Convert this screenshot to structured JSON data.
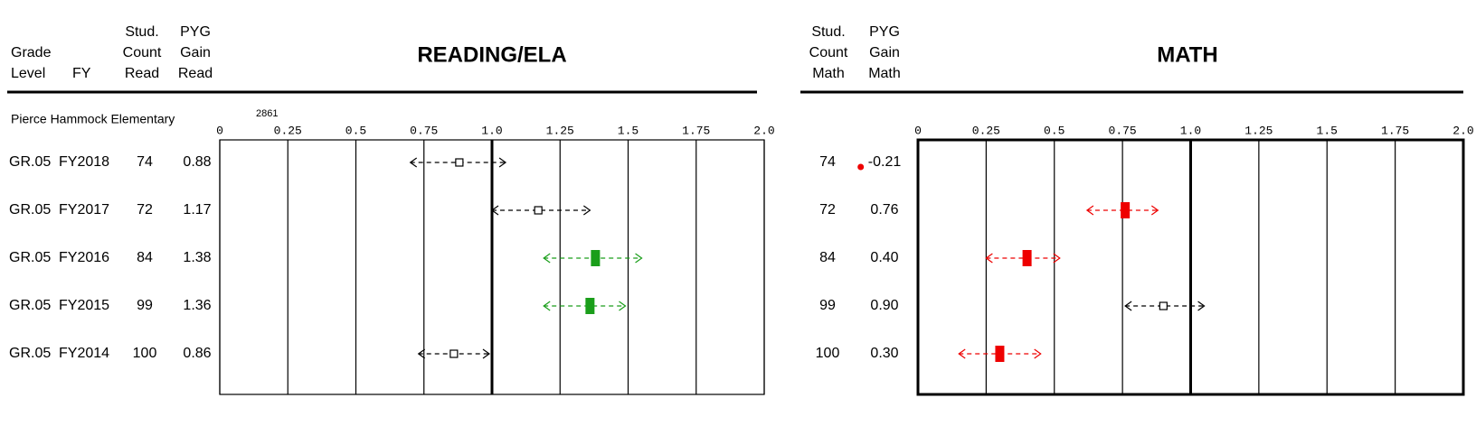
{
  "columns": [
    [
      "Grade",
      "Level"
    ],
    [
      "FY"
    ],
    [
      "Stud.",
      "Count",
      "Read"
    ],
    [
      "PYG",
      "Gain",
      "Read"
    ]
  ],
  "math_columns": [
    [
      "Stud.",
      "Count",
      "Math"
    ],
    [
      "PYG",
      "Gain",
      "Math"
    ]
  ],
  "school": "Pierce Hammock Elementary",
  "annotation": "2861",
  "rows": {
    "grade": [
      "GR.05",
      "GR.05",
      "GR.05",
      "GR.05",
      "GR.05"
    ],
    "fy": [
      "FY2018",
      "FY2017",
      "FY2016",
      "FY2015",
      "FY2014"
    ]
  },
  "chart_data": [
    {
      "type": "interval",
      "title": "READING/ELA",
      "counts": [
        74,
        72,
        84,
        99,
        100
      ],
      "values": [
        0.88,
        1.17,
        1.38,
        1.36,
        0.86
      ],
      "low": [
        0.7,
        1.0,
        1.19,
        1.19,
        0.73
      ],
      "high": [
        1.05,
        1.36,
        1.55,
        1.49,
        0.99
      ],
      "colors": [
        "#000000",
        "#000000",
        "#1a9e1a",
        "#1a9e1a",
        "#000000"
      ],
      "filled": [
        false,
        false,
        true,
        true,
        false
      ],
      "xlim": [
        0,
        2
      ],
      "xticks": [
        0,
        0.25,
        0.5,
        0.75,
        {
          "value": 1,
          "label": "1.0"
        },
        1.25,
        1.5,
        1.75,
        {
          "value": 2,
          "label": "2.0"
        }
      ],
      "reference": 1,
      "grid": true
    },
    {
      "type": "interval",
      "title": "MATH",
      "counts": [
        74,
        72,
        84,
        99,
        100
      ],
      "values": [
        -0.21,
        0.76,
        0.4,
        0.9,
        0.3
      ],
      "value_labels": [
        "-0.21",
        "0.76",
        "0.40",
        "0.90",
        "0.30"
      ],
      "low": [
        null,
        0.62,
        0.25,
        0.76,
        0.15
      ],
      "high": [
        null,
        0.88,
        0.52,
        1.05,
        0.45
      ],
      "colors": [
        "#ee0000",
        "#ee0000",
        "#ee0000",
        "#000000",
        "#ee0000"
      ],
      "filled": [
        true,
        true,
        true,
        false,
        true
      ],
      "xlim": [
        0,
        2
      ],
      "xticks": [
        0,
        0.25,
        0.5,
        0.75,
        {
          "value": 1,
          "label": "1.0"
        },
        1.25,
        1.5,
        1.75,
        {
          "value": 2,
          "label": "2.0"
        }
      ],
      "reference": 1,
      "grid": true
    }
  ]
}
